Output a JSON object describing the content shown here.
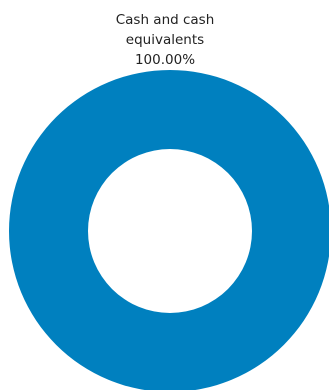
{
  "chart_data": {
    "type": "pie",
    "donut": true,
    "title": "",
    "slices": [
      {
        "label_lines": [
          "Cash and cash",
          "equivalents"
        ],
        "percent_label": "100.00%",
        "value": 100.0,
        "color": "#0080bf"
      }
    ]
  }
}
